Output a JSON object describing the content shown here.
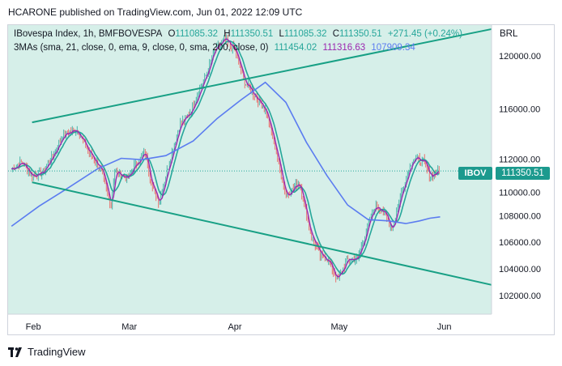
{
  "header": {
    "published_text": "HCARONE published on TradingView.com, Jun 01, 2022 12:09 UTC"
  },
  "legend": {
    "symbol_line": "IBovespa Index, 1h, BMFBOVESPA",
    "open_label": "O",
    "open_value": "111085.32",
    "high_label": "H",
    "high_value": "111350.51",
    "low_label": "L",
    "low_value": "111085.32",
    "close_label": "C",
    "close_value": "111350.51",
    "change_value": "+271.45 (+0.24%)",
    "ma_line": "3MAs (sma, 21, close, 0, ema, 9, close, 0, sma, 200, close, 0)",
    "ma1_value": "111454.02",
    "ma2_value": "111316.63",
    "ma3_value": "107909.34"
  },
  "price_axis": {
    "currency": "BRL",
    "last_symbol": "IBOV",
    "last_price": "111350.51"
  },
  "footer": {
    "brand": "TradingView"
  },
  "colors": {
    "background_shade": "#d6efe9",
    "channel_line": "#18a085",
    "ma21": "#26a69a",
    "ma9": "#9c27b0",
    "ma200": "#5b7cf0",
    "candle_up": "#26a69a",
    "candle_down": "#ef5350"
  },
  "chart_data": {
    "type": "line",
    "title": "IBovespa Index, 1h, BMFBOVESPA",
    "x_ticks": [
      "Feb",
      "Mar",
      "Apr",
      "May",
      "Jun"
    ],
    "y_ticks": [
      102000,
      104000,
      106000,
      108000,
      110000,
      112000,
      116000,
      120000
    ],
    "ylim": [
      100600,
      122300
    ],
    "grid": false,
    "series": [
      {
        "name": "price (close)",
        "x": [
          "Jan 26",
          "Jan 29",
          "Feb 01",
          "Feb 04",
          "Feb 07",
          "Feb 10",
          "Feb 14",
          "Feb 17",
          "Feb 21",
          "Feb 24",
          "Feb 25",
          "Mar 01",
          "Mar 03",
          "Mar 06",
          "Mar 08",
          "Mar 10",
          "Mar 13",
          "Mar 16",
          "Mar 19",
          "Mar 22",
          "Mar 24",
          "Mar 26",
          "Mar 29",
          "Apr 01",
          "Apr 04",
          "Apr 07",
          "Apr 10",
          "Apr 13",
          "Apr 16",
          "Apr 20",
          "Apr 23",
          "Apr 26",
          "Apr 28",
          "May 01",
          "May 04",
          "May 07",
          "May 10",
          "May 12",
          "May 14",
          "May 17",
          "May 20",
          "May 23",
          "May 26",
          "May 28",
          "May 31"
        ],
        "values": [
          111500,
          112000,
          111000,
          111200,
          112500,
          114000,
          114500,
          113000,
          111500,
          108700,
          111300,
          110800,
          111800,
          112700,
          110200,
          109000,
          112000,
          114800,
          115700,
          117500,
          118700,
          120300,
          121200,
          120500,
          118000,
          117000,
          116000,
          113000,
          109500,
          110500,
          106800,
          105000,
          104800,
          103200,
          104700,
          104800,
          107300,
          108700,
          108500,
          107000,
          110000,
          112300,
          112100,
          111000,
          111350
        ]
      },
      {
        "name": "SMA 200",
        "x": [
          "Jan 26",
          "Feb 03",
          "Feb 11",
          "Feb 20",
          "Feb 27",
          "Mar 05",
          "Mar 12",
          "Mar 20",
          "Mar 27",
          "Apr 03",
          "Apr 10",
          "Apr 16",
          "Apr 22",
          "Apr 28",
          "May 04",
          "May 10",
          "May 16",
          "May 21",
          "May 25",
          "May 28",
          "May 31"
        ],
        "values": [
          107200,
          108700,
          110000,
          111500,
          112300,
          112200,
          112500,
          113600,
          115300,
          116700,
          118000,
          116500,
          113500,
          111000,
          108800,
          107700,
          107600,
          107400,
          107600,
          107800,
          107909
        ]
      }
    ],
    "trendlines": [
      {
        "name": "upper channel",
        "from": [
          "Feb 01",
          115000
        ],
        "to": [
          "Jun 15",
          122000
        ]
      },
      {
        "name": "lower channel",
        "from": [
          "Feb 01",
          110500
        ],
        "to": [
          "Jun 15",
          102800
        ]
      }
    ]
  }
}
